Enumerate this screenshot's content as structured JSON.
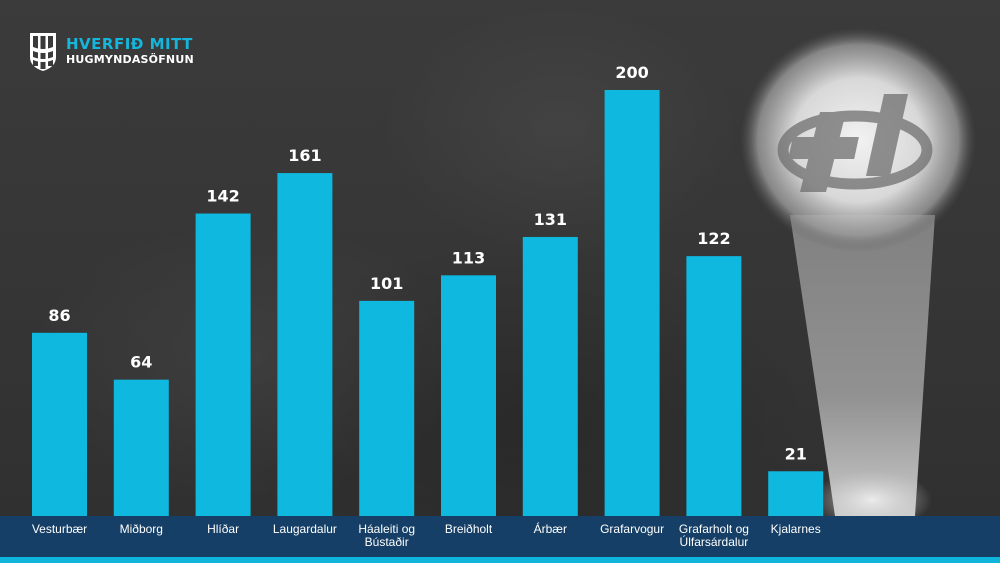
{
  "logo": {
    "title": "HVERFIÐ MITT",
    "subtitle": "HUGMYNDASÖFNUN",
    "icon": "reykjavik-crest-icon",
    "spotlight_icon": "hverfid-mitt-h-emblem-icon"
  },
  "colors": {
    "bar": "#0fb8de",
    "title": "#14b6dc",
    "band": "#153f66",
    "strip": "#10b5dc",
    "label": "#ffffff"
  },
  "chart_data": {
    "type": "bar",
    "categories": [
      "Vesturbær",
      "Miðborg",
      "Hlíðar",
      "Laugardalur",
      "Háaleiti og\nBústaðir",
      "Breiðholt",
      "Árbær",
      "Grafarvogur",
      "Grafarholt og\nÚlfarsárdalur",
      "Kjalarnes"
    ],
    "values": [
      86,
      64,
      142,
      161,
      101,
      113,
      131,
      200,
      122,
      21
    ],
    "value_labels": [
      "86",
      "64",
      "142",
      "161",
      "101",
      "113",
      "131",
      "200",
      "122",
      "21"
    ],
    "ylim": [
      0,
      200
    ],
    "grid": false,
    "legend": "none"
  }
}
